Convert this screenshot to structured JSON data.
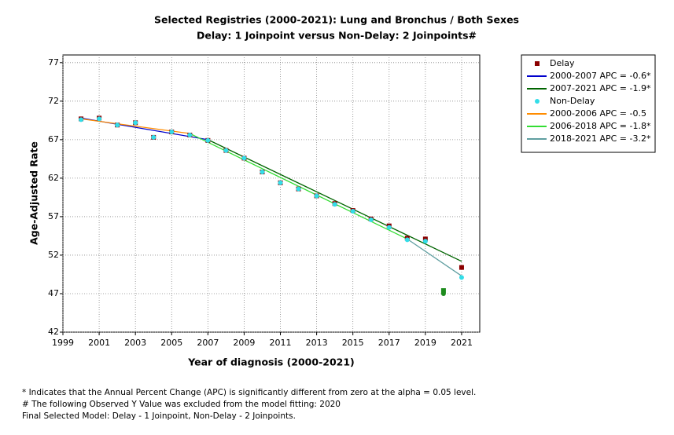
{
  "chart_data": {
    "type": "scatter-line",
    "title": "Selected Registries (2000-2021): Lung and Bronchus / Both Sexes",
    "subtitle": "Delay: 1 Joinpoint  versus  Non-Delay: 2 Joinpoints#",
    "x_label": "Year of diagnosis (2000-2021)",
    "y_label": "Age-Adjusted Rate",
    "xlim": [
      1999,
      2022
    ],
    "ylim": [
      42,
      78
    ],
    "xticks": [
      1999,
      2001,
      2003,
      2005,
      2007,
      2009,
      2011,
      2013,
      2015,
      2017,
      2019,
      2021
    ],
    "yticks": [
      42,
      47,
      52,
      57,
      62,
      67,
      72,
      77
    ],
    "grid": true,
    "excluded_x": 2020,
    "excluded_color": "#1e8c1e",
    "series": [
      {
        "name": "Delay",
        "kind": "points",
        "marker": "square",
        "color": "#8b0000",
        "x": [
          2000,
          2001,
          2002,
          2003,
          2004,
          2005,
          2006,
          2007,
          2008,
          2009,
          2010,
          2011,
          2012,
          2013,
          2014,
          2015,
          2016,
          2017,
          2018,
          2019,
          2020,
          2021
        ],
        "values": [
          69.7,
          69.8,
          68.9,
          69.2,
          67.3,
          68.0,
          67.6,
          66.9,
          65.6,
          64.6,
          62.8,
          61.4,
          60.6,
          59.7,
          58.7,
          57.8,
          56.7,
          55.8,
          54.2,
          54.1,
          47.4,
          50.4
        ]
      },
      {
        "name": "2000-2007 APC  =  -0.6*",
        "kind": "line",
        "color": "#0000cc",
        "x": [
          2000,
          2007
        ],
        "values": [
          69.8,
          67.0
        ]
      },
      {
        "name": "2007-2021 APC  =  -1.9*",
        "kind": "line",
        "color": "#006400",
        "x": [
          2007,
          2021
        ],
        "values": [
          67.0,
          51.2
        ]
      },
      {
        "name": "Non-Delay",
        "kind": "points",
        "marker": "circle",
        "color": "#33dde8",
        "x": [
          2000,
          2001,
          2002,
          2003,
          2004,
          2005,
          2006,
          2007,
          2008,
          2009,
          2010,
          2011,
          2012,
          2013,
          2014,
          2015,
          2016,
          2017,
          2018,
          2019,
          2020,
          2021
        ],
        "values": [
          69.6,
          69.7,
          68.9,
          69.2,
          67.3,
          68.0,
          67.6,
          66.9,
          65.6,
          64.6,
          62.8,
          61.4,
          60.6,
          59.7,
          58.6,
          57.7,
          56.6,
          55.6,
          54.0,
          53.8,
          47.0,
          49.1
        ]
      },
      {
        "name": "2000-2006 APC  =  -0.5",
        "kind": "line",
        "color": "#ff8c00",
        "x": [
          2000,
          2006
        ],
        "values": [
          69.7,
          67.8
        ]
      },
      {
        "name": "2006-2018 APC  =  -1.8*",
        "kind": "line",
        "color": "#33dd33",
        "x": [
          2006,
          2018
        ],
        "values": [
          67.8,
          54.1
        ]
      },
      {
        "name": "2018-2021 APC  =  -3.2*",
        "kind": "line",
        "color": "#5f9ea0",
        "x": [
          2018,
          2021
        ],
        "values": [
          54.1,
          49.3
        ]
      }
    ],
    "notes": [
      "* Indicates that the Annual Percent Change (APC) is significantly different from zero at the alpha = 0.05 level.",
      " # The following Observed Y Value was excluded from the model fitting: 2020",
      "Final Selected Model: Delay - 1 Joinpoint, Non-Delay - 2 Joinpoints."
    ]
  }
}
